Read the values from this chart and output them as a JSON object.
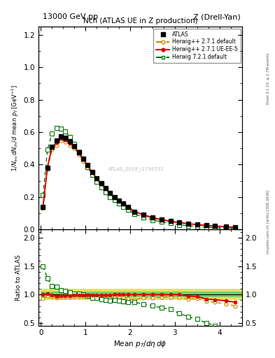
{
  "title_left": "13000 GeV pp",
  "title_right": "Z (Drell-Yan)",
  "plot_title": "Nch (ATLAS UE in Z production)",
  "watermark": "ATLAS_2019_I1736531",
  "rivet_text": "Rivet 3.1.10, ≥ 2.7M events",
  "arxiv_text": "mcplots.cern.ch [arXiv:1306.3436]",
  "atlas_x": [
    0.05,
    0.15,
    0.25,
    0.35,
    0.45,
    0.55,
    0.65,
    0.75,
    0.85,
    0.95,
    1.05,
    1.15,
    1.25,
    1.35,
    1.45,
    1.55,
    1.65,
    1.75,
    1.85,
    1.95,
    2.1,
    2.3,
    2.5,
    2.7,
    2.9,
    3.1,
    3.3,
    3.5,
    3.7,
    3.9,
    4.15,
    4.35
  ],
  "atlas_y": [
    0.14,
    0.38,
    0.51,
    0.55,
    0.575,
    0.565,
    0.545,
    0.515,
    0.475,
    0.435,
    0.395,
    0.355,
    0.315,
    0.285,
    0.255,
    0.225,
    0.2,
    0.178,
    0.158,
    0.14,
    0.11,
    0.09,
    0.072,
    0.06,
    0.05,
    0.042,
    0.036,
    0.03,
    0.026,
    0.022,
    0.018,
    0.015
  ],
  "atlas_yerr": [
    0.008,
    0.012,
    0.012,
    0.012,
    0.012,
    0.012,
    0.012,
    0.012,
    0.012,
    0.012,
    0.01,
    0.01,
    0.01,
    0.01,
    0.01,
    0.01,
    0.008,
    0.008,
    0.008,
    0.008,
    0.006,
    0.005,
    0.005,
    0.004,
    0.004,
    0.003,
    0.003,
    0.003,
    0.002,
    0.002,
    0.002,
    0.002
  ],
  "atlas_xerr": [
    0.05,
    0.05,
    0.05,
    0.05,
    0.05,
    0.05,
    0.05,
    0.05,
    0.05,
    0.05,
    0.05,
    0.05,
    0.05,
    0.05,
    0.05,
    0.05,
    0.05,
    0.05,
    0.05,
    0.05,
    0.1,
    0.1,
    0.1,
    0.1,
    0.1,
    0.1,
    0.1,
    0.1,
    0.1,
    0.1,
    0.15,
    0.15
  ],
  "hw271d_y": [
    0.13,
    0.37,
    0.49,
    0.52,
    0.55,
    0.54,
    0.52,
    0.5,
    0.46,
    0.42,
    0.38,
    0.34,
    0.3,
    0.27,
    0.24,
    0.21,
    0.19,
    0.17,
    0.15,
    0.13,
    0.1,
    0.085,
    0.068,
    0.057,
    0.048,
    0.04,
    0.033,
    0.028,
    0.023,
    0.019,
    0.015,
    0.012
  ],
  "hw271u_y": [
    0.14,
    0.385,
    0.505,
    0.535,
    0.562,
    0.552,
    0.533,
    0.513,
    0.473,
    0.433,
    0.393,
    0.353,
    0.313,
    0.282,
    0.252,
    0.223,
    0.2,
    0.178,
    0.158,
    0.14,
    0.11,
    0.09,
    0.072,
    0.06,
    0.05,
    0.042,
    0.035,
    0.029,
    0.024,
    0.02,
    0.016,
    0.013
  ],
  "hw721d_y": [
    0.21,
    0.49,
    0.59,
    0.625,
    0.62,
    0.605,
    0.57,
    0.525,
    0.48,
    0.435,
    0.385,
    0.335,
    0.295,
    0.26,
    0.23,
    0.2,
    0.18,
    0.16,
    0.14,
    0.122,
    0.095,
    0.075,
    0.058,
    0.046,
    0.037,
    0.028,
    0.022,
    0.017,
    0.013,
    0.01,
    0.007,
    0.005
  ],
  "band_x_edges": [
    0.0,
    0.1,
    0.2,
    0.3,
    0.4,
    0.5,
    0.6,
    0.7,
    0.8,
    0.9,
    1.0,
    1.1,
    1.2,
    1.3,
    1.4,
    1.5,
    1.6,
    1.7,
    1.8,
    1.9,
    2.0,
    2.2,
    2.4,
    2.6,
    2.8,
    3.0,
    3.2,
    3.4,
    3.6,
    3.8,
    4.0,
    4.3,
    4.5
  ],
  "green_low": [
    0.95,
    0.95,
    0.95,
    0.95,
    0.95,
    0.95,
    0.95,
    0.95,
    0.95,
    0.95,
    0.95,
    0.95,
    0.95,
    0.95,
    0.95,
    0.95,
    0.95,
    0.95,
    0.95,
    0.95,
    0.95,
    0.95,
    0.95,
    0.95,
    0.95,
    0.95,
    0.95,
    0.95,
    0.95,
    0.95,
    0.95,
    0.95
  ],
  "green_high": [
    1.05,
    1.05,
    1.05,
    1.05,
    1.05,
    1.05,
    1.05,
    1.05,
    1.05,
    1.05,
    1.05,
    1.05,
    1.05,
    1.05,
    1.05,
    1.05,
    1.05,
    1.05,
    1.05,
    1.05,
    1.05,
    1.05,
    1.05,
    1.05,
    1.05,
    1.05,
    1.05,
    1.05,
    1.05,
    1.05,
    1.05,
    1.05
  ],
  "yellow_low": [
    0.9,
    0.9,
    0.9,
    0.9,
    0.9,
    0.9,
    0.9,
    0.9,
    0.9,
    0.9,
    0.9,
    0.9,
    0.9,
    0.9,
    0.9,
    0.9,
    0.9,
    0.9,
    0.9,
    0.9,
    0.9,
    0.9,
    0.9,
    0.9,
    0.9,
    0.9,
    0.9,
    0.9,
    0.9,
    0.9,
    0.9,
    0.9
  ],
  "yellow_high": [
    1.1,
    1.1,
    1.1,
    1.1,
    1.1,
    1.1,
    1.1,
    1.1,
    1.1,
    1.1,
    1.1,
    1.1,
    1.1,
    1.1,
    1.1,
    1.1,
    1.1,
    1.1,
    1.1,
    1.1,
    1.1,
    1.1,
    1.1,
    1.1,
    1.1,
    1.1,
    1.1,
    1.1,
    1.1,
    1.1,
    1.1,
    1.1
  ],
  "color_atlas": "#000000",
  "color_hw271d": "#cc8800",
  "color_hw271u": "#dd0000",
  "color_hw721d": "#007700",
  "color_green": "#66cc66",
  "color_yellow": "#dddd44",
  "main_ylim": [
    0.0,
    1.25
  ],
  "ratio_ylim": [
    0.45,
    2.15
  ],
  "xlim": [
    -0.05,
    4.5
  ],
  "main_yticks": [
    0.0,
    0.2,
    0.4,
    0.6,
    0.8,
    1.0,
    1.2
  ],
  "ratio_yticks": [
    0.5,
    1.0,
    1.5,
    2.0
  ]
}
